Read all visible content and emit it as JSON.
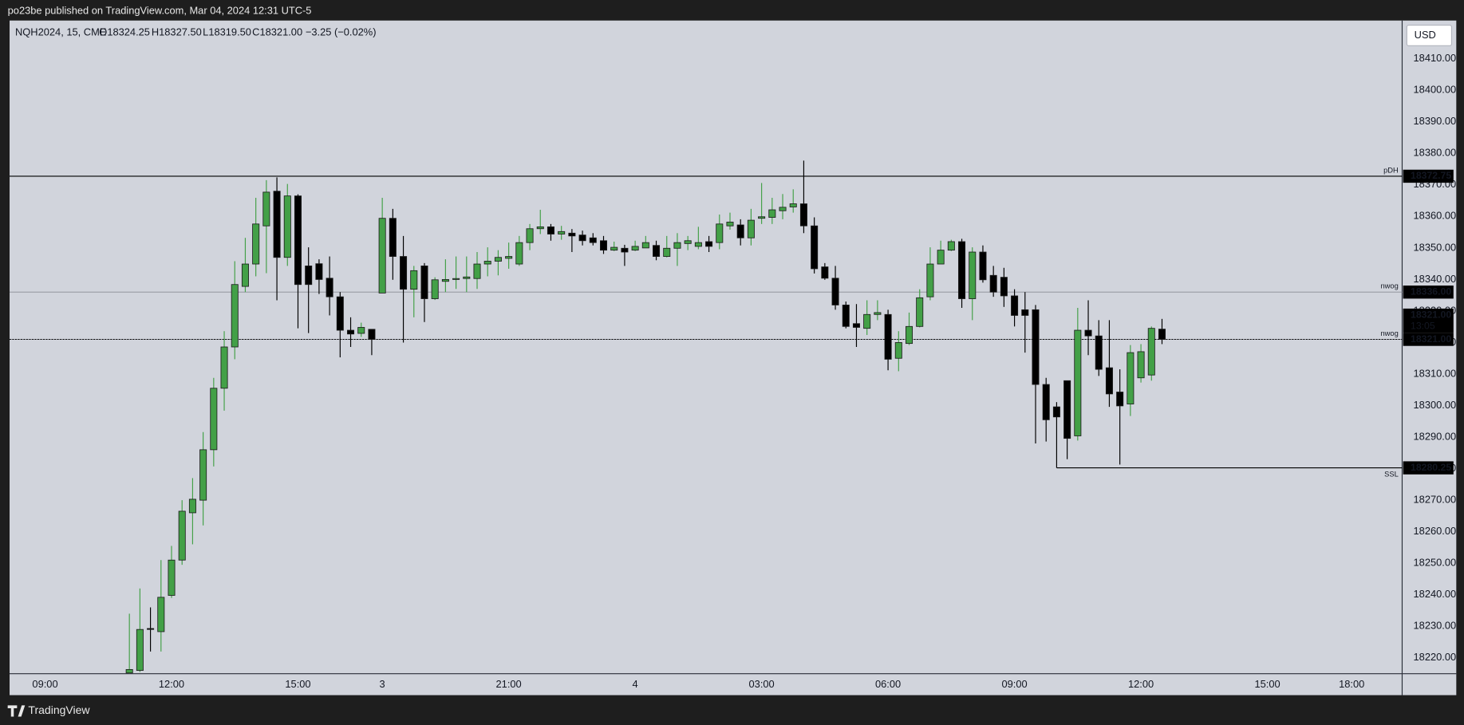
{
  "top_bar": {
    "text": "po23be published on TradingView.com, Mar 04, 2024 12:31 UTC-5"
  },
  "footer": {
    "brand": "TradingView"
  },
  "currency_button": "USD",
  "chart_data": {
    "type": "candlestick",
    "header": {
      "symbol": "NQH2024, 15, CME",
      "open": "O18324.25",
      "high": "H18327.50",
      "low": "L18319.50",
      "close": "C18321.00",
      "change": "−3.25 (−0.02%)"
    },
    "x": [
      8,
      9,
      10,
      11,
      12,
      13,
      14,
      15,
      16,
      17,
      18,
      19,
      20,
      21,
      22,
      23,
      24,
      25,
      26,
      27,
      28,
      29,
      30,
      31,
      32,
      33,
      34,
      35,
      36,
      37,
      38,
      39,
      40,
      41,
      42,
      43,
      44,
      45,
      46,
      47,
      48,
      49,
      50,
      51,
      52,
      53,
      54,
      55,
      56,
      57,
      58,
      59,
      60,
      61,
      62,
      63,
      64,
      65,
      66,
      67,
      68,
      69,
      70,
      71,
      72,
      73,
      74,
      75,
      76,
      77,
      78,
      79,
      80,
      81,
      82,
      83,
      84,
      85,
      86,
      87,
      88,
      89,
      90,
      91,
      92,
      93,
      94,
      95,
      96,
      97,
      98,
      99,
      100,
      101,
      102,
      103,
      104,
      105,
      106
    ],
    "open": [
      18215.2,
      18216,
      18229.3,
      18228.3,
      18239.8,
      18251,
      18266,
      18270,
      18286,
      18305.5,
      18318.6,
      18337.8,
      18344.9,
      18357,
      18368,
      18347,
      18366.5,
      18344.3,
      18345,
      18340.4,
      18334.5,
      18323.9,
      18322.9,
      18324.2,
      18335.7,
      18359.4,
      18347.3,
      18336.9,
      18344.3,
      18333.9,
      18339.4,
      18340,
      18340.3,
      18340.3,
      18344.9,
      18345.8,
      18346.7,
      18344.9,
      18351.7,
      18356.1,
      18356.7,
      18354.4,
      18354.7,
      18354.1,
      18353.2,
      18352.3,
      18349.3,
      18349.9,
      18349.3,
      18350,
      18350.8,
      18347.3,
      18349.9,
      18351.4,
      18350.5,
      18352,
      18351.7,
      18357,
      18357.3,
      18353.2,
      18359.4,
      18359.7,
      18361.8,
      18363,
      18364,
      18357,
      18344,
      18340.4,
      18331.9,
      18326,
      18324.5,
      18328.9,
      18328.9,
      18315,
      18319.7,
      18325.1,
      18334.5,
      18344.9,
      18349.3,
      18352,
      18333.9,
      18348.7,
      18341.3,
      18340.7,
      18334.8,
      18330.4,
      18330.4,
      18306.7,
      18299.6,
      18307.9,
      18290.4,
      18323.9,
      18322.1,
      18312,
      18304.3,
      18300.5,
      18308.8,
      18309.7,
      18324.25
    ],
    "high": [
      18234,
      18242,
      18236,
      18251,
      18255.5,
      18270,
      18277,
      18291.6,
      18308.8,
      18323.6,
      18345.8,
      18353.2,
      18365.9,
      18371.5,
      18372.4,
      18370.3,
      18367,
      18350.2,
      18346.4,
      18347.3,
      18336,
      18328,
      18326.3,
      18324.2,
      18365.9,
      18362.4,
      18353.8,
      18344.3,
      18345.2,
      18340.7,
      18346.4,
      18347.3,
      18347.3,
      18348.7,
      18350.2,
      18349.3,
      18351.7,
      18353.8,
      18357.6,
      18362.1,
      18357.6,
      18357,
      18356,
      18355.5,
      18354.7,
      18353.8,
      18352,
      18351,
      18352.3,
      18353.8,
      18352.3,
      18353.8,
      18354.7,
      18353.8,
      18356.7,
      18353.8,
      18360.6,
      18361.2,
      18359.1,
      18362.4,
      18370.6,
      18365.9,
      18367.1,
      18368.6,
      18377.7,
      18359.7,
      18345.2,
      18344.3,
      18333,
      18332.2,
      18333.4,
      18333.4,
      18330.4,
      18323.6,
      18329.5,
      18336.9,
      18350.2,
      18352.3,
      18352.6,
      18352.9,
      18350.2,
      18350.8,
      18344.3,
      18343.7,
      18336.9,
      18336,
      18331.9,
      18308.8,
      18301.1,
      18307.9,
      18331,
      18333.4,
      18327.1,
      18327.1,
      18311.5,
      18319.2,
      18319.5,
      18325.1,
      18327.5
    ],
    "low": [
      18215,
      18215.5,
      18222,
      18222,
      18239,
      18249.5,
      18256,
      18262,
      18280.7,
      18298.4,
      18314.7,
      18336,
      18341,
      18342,
      18333.4,
      18344.3,
      18324.5,
      18323,
      18335.4,
      18328.6,
      18315.3,
      18318.6,
      18321.8,
      18316,
      18335.7,
      18339.9,
      18320,
      18328,
      18326.5,
      18333.5,
      18336,
      18337,
      18336,
      18337,
      18341,
      18341.3,
      18343.4,
      18344.3,
      18349.3,
      18354.4,
      18352.3,
      18352.6,
      18348.7,
      18350.8,
      18350.8,
      18348.1,
      18349,
      18344.3,
      18349,
      18350,
      18346.1,
      18347,
      18344.3,
      18349.3,
      18349.6,
      18348.7,
      18349.6,
      18355.8,
      18350.8,
      18350.8,
      18357.6,
      18357.6,
      18359.1,
      18361.2,
      18354.7,
      18341.9,
      18339.9,
      18330.4,
      18324.5,
      18318.6,
      18322.4,
      18327.1,
      18311.2,
      18310.9,
      18319.2,
      18324.8,
      18333.4,
      18344.9,
      18349,
      18331,
      18327.1,
      18339,
      18334.5,
      18331.3,
      18325.1,
      18316.8,
      18288,
      18288.6,
      18280.25,
      18283,
      18288.9,
      18316,
      18309.4,
      18299.6,
      18281.3,
      18296.7,
      18307.3,
      18307.9,
      18319.5
    ],
    "close": [
      18216.3,
      18229,
      18229,
      18239.2,
      18251,
      18266.5,
      18270.3,
      18286,
      18305.5,
      18318.6,
      18338.4,
      18344.9,
      18357.6,
      18367.7,
      18347,
      18366.5,
      18338.4,
      18338.4,
      18340,
      18334.5,
      18323.9,
      18322.7,
      18324.8,
      18321,
      18359.4,
      18347.3,
      18336.9,
      18342.8,
      18333.9,
      18339.9,
      18340,
      18340.3,
      18340.8,
      18344.9,
      18345.8,
      18347,
      18347.3,
      18351.7,
      18356.1,
      18356.7,
      18354.4,
      18355.2,
      18353.8,
      18352.3,
      18351.7,
      18349.3,
      18350.2,
      18348.7,
      18350.5,
      18351.7,
      18347.3,
      18349.9,
      18351.7,
      18352.3,
      18351.7,
      18350.5,
      18357.6,
      18358.2,
      18353.2,
      18358.8,
      18359.9,
      18362.1,
      18362.9,
      18364,
      18357,
      18343.4,
      18340.4,
      18331.9,
      18325.1,
      18324.8,
      18328.9,
      18329.5,
      18314.7,
      18320,
      18325.1,
      18334.2,
      18344.9,
      18349.3,
      18352,
      18333.9,
      18348.7,
      18339.9,
      18336,
      18334.8,
      18328.6,
      18328.6,
      18306.7,
      18295.5,
      18296.4,
      18289.6,
      18323.9,
      18322.1,
      18311.5,
      18303.7,
      18299.9,
      18316.8,
      18317.1,
      18324.5,
      18321
    ],
    "up_color": "#43a047",
    "down_color": "#000000",
    "xlim": [
      -3.37,
      128.79
    ],
    "ylim": [
      18214.97,
      18422.13
    ],
    "xticks": [
      {
        "value": 0,
        "label": "09:00"
      },
      {
        "value": 12,
        "label": "12:00"
      },
      {
        "value": 24,
        "label": "15:00"
      },
      {
        "value": 32,
        "label": "3"
      },
      {
        "value": 44,
        "label": "21:00"
      },
      {
        "value": 56,
        "label": "4"
      },
      {
        "value": 68,
        "label": "03:00"
      },
      {
        "value": 80,
        "label": "06:00"
      },
      {
        "value": 92,
        "label": "09:00"
      },
      {
        "value": 104,
        "label": "12:00"
      },
      {
        "value": 116,
        "label": "15:00"
      },
      {
        "value": 124,
        "label": "18:00"
      }
    ],
    "yticks": [
      {
        "value": 18220,
        "label": "18220.00"
      },
      {
        "value": 18230,
        "label": "18230.00"
      },
      {
        "value": 18240,
        "label": "18240.00"
      },
      {
        "value": 18250,
        "label": "18250.00"
      },
      {
        "value": 18260,
        "label": "18260.00"
      },
      {
        "value": 18270,
        "label": "18270.00"
      },
      {
        "value": 18280,
        "label": "18280.00"
      },
      {
        "value": 18290,
        "label": "18290.00"
      },
      {
        "value": 18300,
        "label": "18300.00"
      },
      {
        "value": 18310,
        "label": "18310.00"
      },
      {
        "value": 18320,
        "label": "18320.00"
      },
      {
        "value": 18330,
        "label": "18330.00"
      },
      {
        "value": 18340,
        "label": "18340.00"
      },
      {
        "value": 18350,
        "label": "18350.00"
      },
      {
        "value": 18360,
        "label": "18360.00"
      },
      {
        "value": 18370,
        "label": "18370.00"
      },
      {
        "value": 18380,
        "label": "18380.00"
      },
      {
        "value": 18390,
        "label": "18390.00"
      },
      {
        "value": 18400,
        "label": "18400.00"
      },
      {
        "value": 18410,
        "label": "18410.00"
      }
    ],
    "grid": false,
    "levels": [
      {
        "name": "pDH",
        "value": 18372.75,
        "label": "18372.75",
        "color": "#000000"
      },
      {
        "name": "nwog",
        "value": 18336,
        "label": "18336.00",
        "color": "#8a8d96"
      },
      {
        "name": "nwog",
        "value": 18321,
        "label": "18321.00",
        "color": "#8a8d96"
      },
      {
        "name": "SSL",
        "value": 18280.25,
        "label": "18280.25",
        "color": "#000000",
        "from": 96
      }
    ],
    "last_price": {
      "value": 18321,
      "label": "18321.00",
      "countdown": "13:05"
    }
  }
}
